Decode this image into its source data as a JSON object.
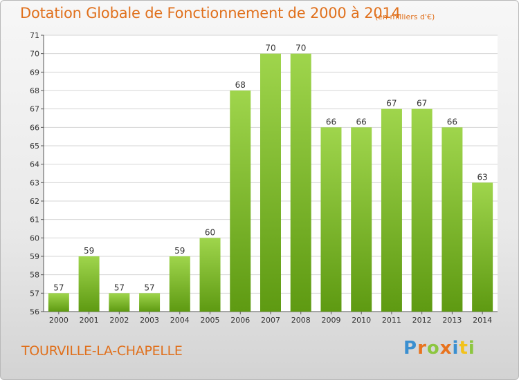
{
  "title": "Dotation Globale de Fonctionnement de 2000 à 2014",
  "unit": "(en milliers d'€)",
  "place": "TOURVILLE-LA-CHAPELLE",
  "logo": {
    "letters": [
      {
        "char": "P",
        "color": "#3a8fd0"
      },
      {
        "char": "r",
        "color": "#e8731e"
      },
      {
        "char": "o",
        "color": "#8cc63f"
      },
      {
        "char": "x",
        "color": "#e8731e"
      },
      {
        "char": "i",
        "color": "#3a8fd0"
      },
      {
        "char": "t",
        "color": "#f2c21b"
      },
      {
        "char": "i",
        "color": "#8cc63f"
      }
    ]
  },
  "colors": {
    "bar_top": "#9fd54c",
    "bar_bottom": "#5e9a12",
    "title": "#e0701c",
    "grid": "#d4d4d4",
    "axis": "#555555"
  },
  "chart_data": {
    "type": "bar",
    "categories": [
      "2000",
      "2001",
      "2002",
      "2003",
      "2004",
      "2005",
      "2006",
      "2007",
      "2008",
      "2009",
      "2010",
      "2011",
      "2012",
      "2013",
      "2014"
    ],
    "values": [
      57,
      59,
      57,
      57,
      59,
      60,
      68,
      70,
      70,
      66,
      66,
      67,
      67,
      66,
      63
    ],
    "ylim": [
      56,
      71
    ],
    "yticks": [
      56,
      57,
      58,
      59,
      60,
      61,
      62,
      63,
      64,
      65,
      66,
      67,
      68,
      69,
      70,
      71
    ],
    "grid": true,
    "data_labels": true
  }
}
